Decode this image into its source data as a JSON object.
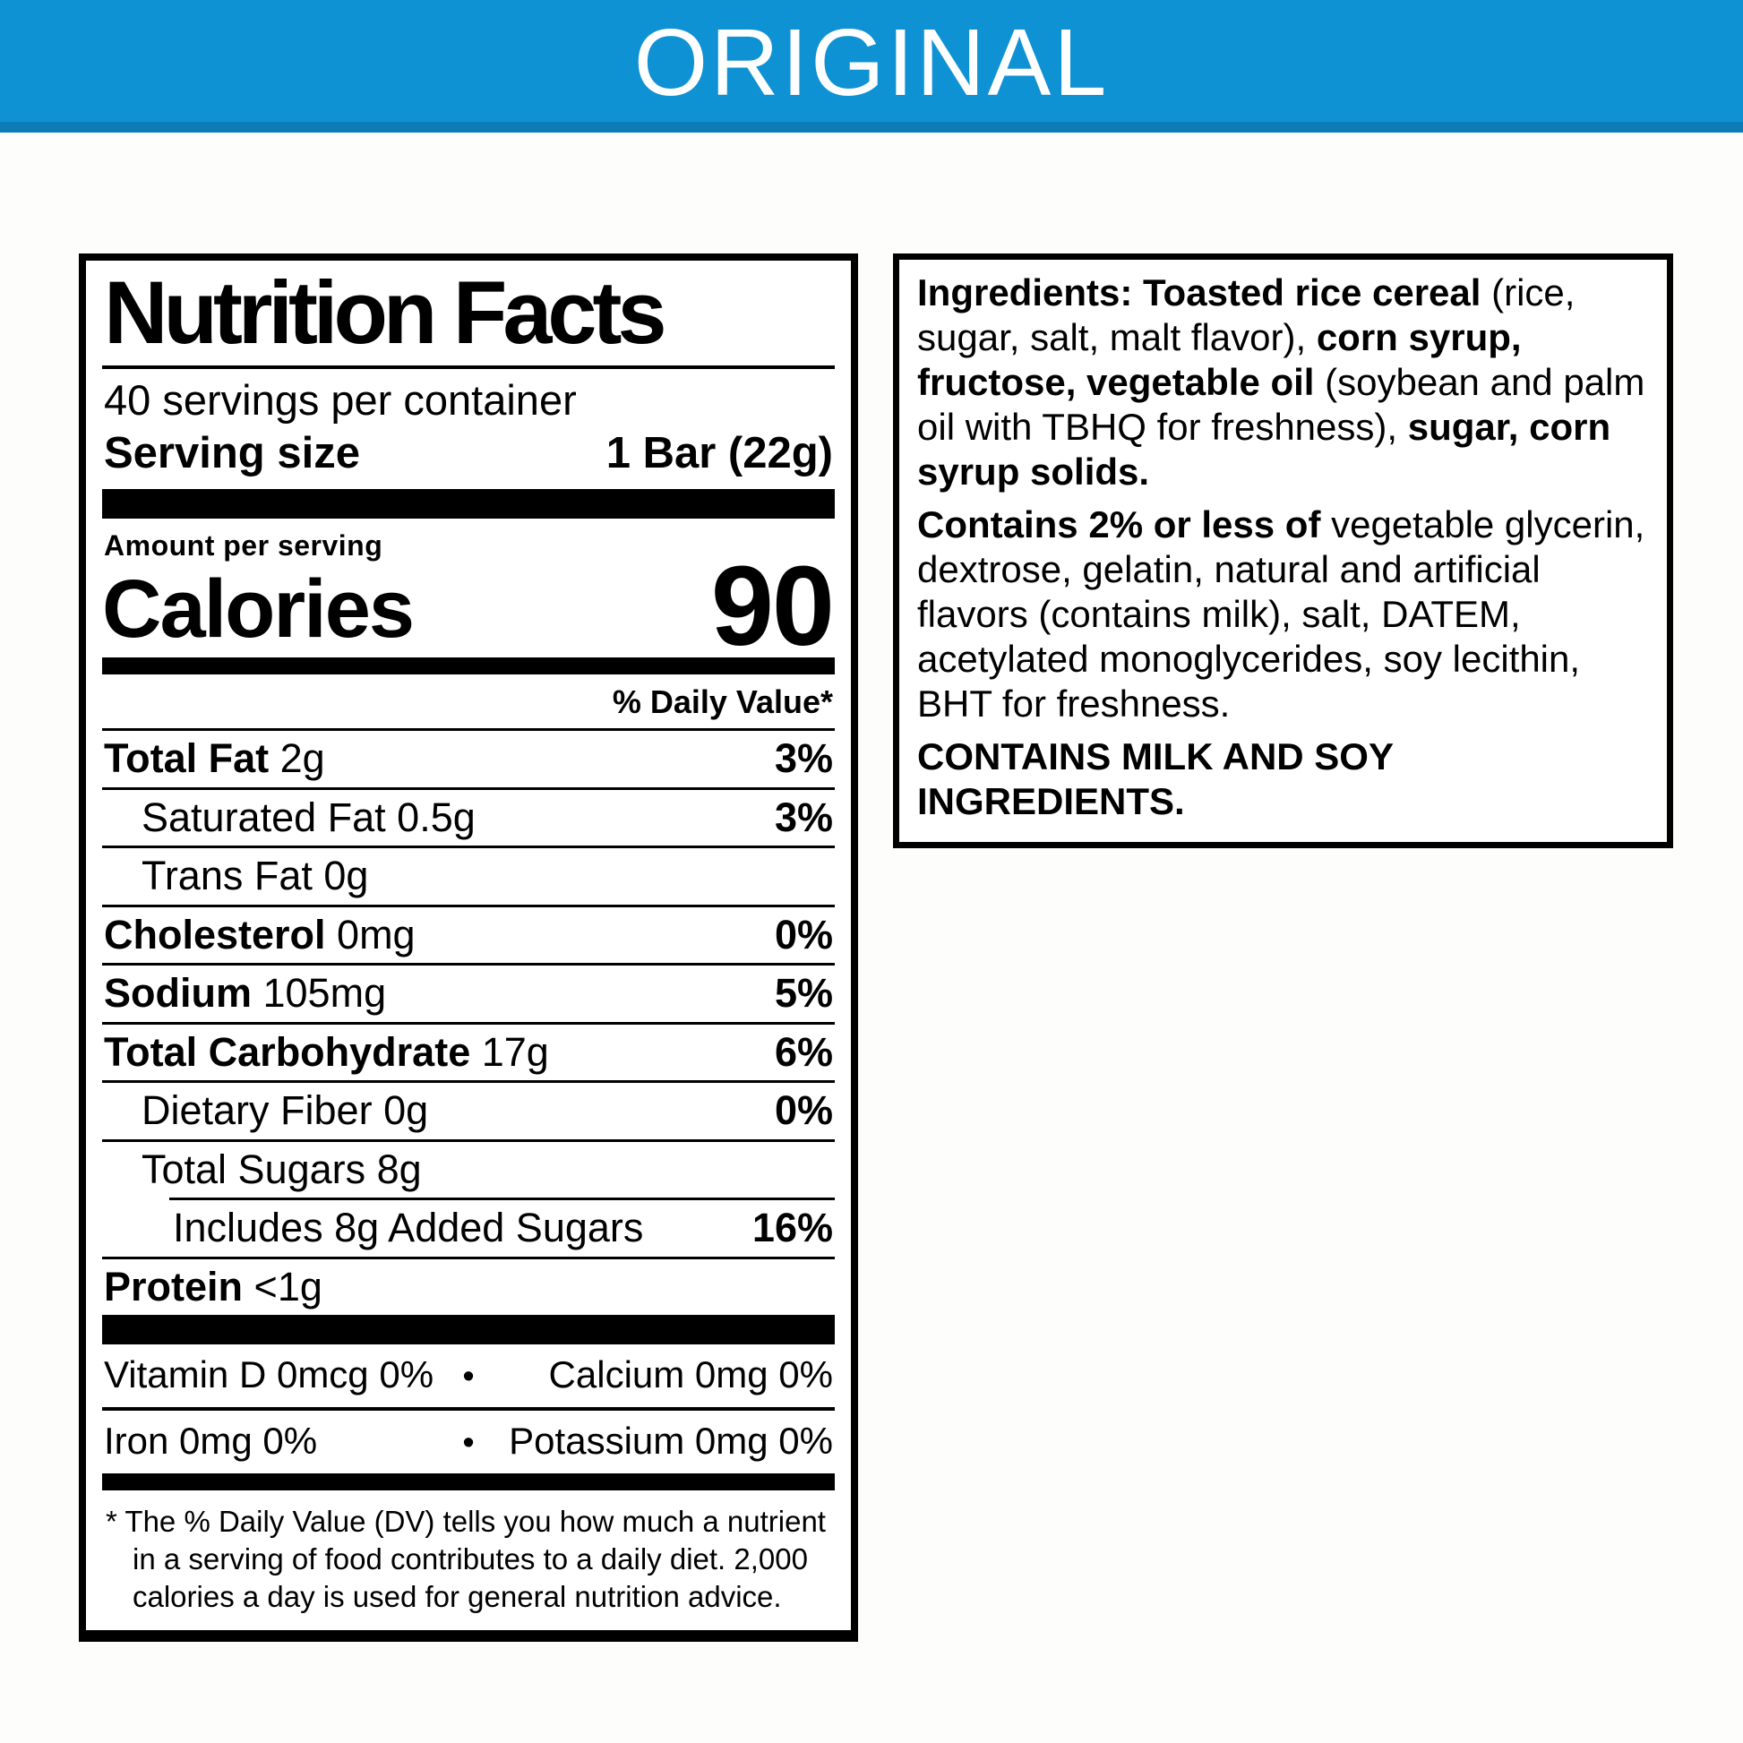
{
  "banner": {
    "label": "ORIGINAL",
    "background": "#0f92d3",
    "bottom_stripe": "#0d7cb6",
    "text_color": "#ffffff"
  },
  "nutrition_panel": {
    "title": "Nutrition Facts",
    "servings_per_container": "40 servings per container",
    "serving_size": {
      "label": "Serving size",
      "value": "1 Bar (22g)"
    },
    "amount_per_serving": "Amount per serving",
    "calories": {
      "label": "Calories",
      "value": "90"
    },
    "daily_value_header": "% Daily Value*",
    "nutrients": [
      {
        "name": "Total Fat",
        "amount": "2g",
        "daily_value": "3%",
        "indent": 0,
        "bold": true,
        "partial_rule": false
      },
      {
        "name": "Saturated Fat",
        "amount": "0.5g",
        "daily_value": "3%",
        "indent": 1,
        "bold": false,
        "partial_rule": false
      },
      {
        "name": "Trans Fat",
        "amount": "0g",
        "daily_value": "",
        "indent": 1,
        "bold": false,
        "partial_rule": false
      },
      {
        "name": "Cholesterol",
        "amount": "0mg",
        "daily_value": "0%",
        "indent": 0,
        "bold": true,
        "partial_rule": false
      },
      {
        "name": "Sodium",
        "amount": "105mg",
        "daily_value": "5%",
        "indent": 0,
        "bold": true,
        "partial_rule": false
      },
      {
        "name": "Total Carbohydrate",
        "amount": "17g",
        "daily_value": "6%",
        "indent": 0,
        "bold": true,
        "partial_rule": false
      },
      {
        "name": "Dietary Fiber",
        "amount": "0g",
        "daily_value": "0%",
        "indent": 1,
        "bold": false,
        "partial_rule": false
      },
      {
        "name": "Total Sugars",
        "amount": "8g",
        "daily_value": "",
        "indent": 1,
        "bold": false,
        "partial_rule": false
      },
      {
        "name": "Includes 8g Added Sugars",
        "amount": "",
        "daily_value": "16%",
        "indent": 2,
        "bold": false,
        "partial_rule": true
      },
      {
        "name": "Protein",
        "amount": "<1g",
        "daily_value": "",
        "indent": 0,
        "bold": true,
        "partial_rule": false
      }
    ],
    "micronutrients": [
      {
        "left": "Vitamin D 0mcg 0%",
        "separator": "•",
        "right": "Calcium 0mg 0%"
      },
      {
        "left": "Iron 0mg 0%",
        "separator": "•",
        "right": "Potassium 0mg 0%"
      }
    ],
    "footnote": "* The % Daily Value (DV) tells you how much a nutrient in a serving of food contributes to a daily diet. 2,000 calories a day is used for general nutrition advice."
  },
  "ingredients_panel": {
    "paragraphs": [
      {
        "segments": [
          {
            "text": "Ingredients: Toasted rice cereal ",
            "bold": true
          },
          {
            "text": "(rice, sugar, salt, malt flavor), ",
            "bold": false
          },
          {
            "text": "corn syrup, fructose, vegetable oil ",
            "bold": true
          },
          {
            "text": "(soybean and palm oil with TBHQ for freshness), ",
            "bold": false
          },
          {
            "text": "sugar, corn syrup solids.",
            "bold": true
          }
        ]
      },
      {
        "segments": [
          {
            "text": "Contains 2% or less of ",
            "bold": true
          },
          {
            "text": "vegetable glycerin, dextrose, gelatin, natural and artificial flavors (contains milk), salt, DATEM, acetylated monoglycerides, soy lecithin, BHT for freshness.",
            "bold": false
          }
        ]
      },
      {
        "segments": [
          {
            "text": "CONTAINS MILK AND SOY INGREDIENTS.",
            "bold": true
          }
        ]
      }
    ]
  }
}
